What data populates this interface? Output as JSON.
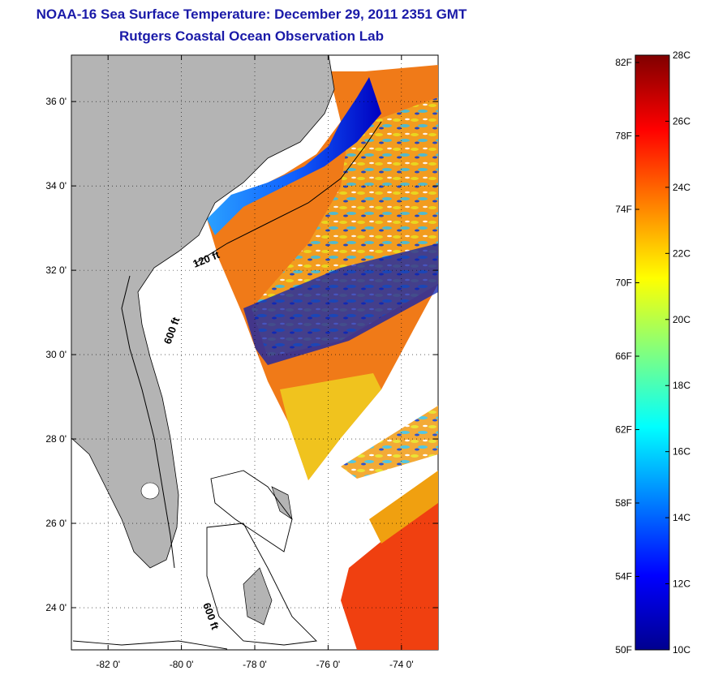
{
  "header": {
    "title": "NOAA-16 Sea Surface Temperature:  December 29, 2011 2351 GMT",
    "subtitle": "Rutgers Coastal Ocean Observation Lab"
  },
  "map": {
    "lat_ticks": [
      "24 0'",
      "26 0'",
      "28 0'",
      "30 0'",
      "32 0'",
      "34 0'",
      "36 0'"
    ],
    "lat_values": [
      24,
      26,
      28,
      30,
      32,
      34,
      36
    ],
    "lon_ticks": [
      "-82 0'",
      "-80 0'",
      "-78 0'",
      "-76 0'",
      "-74 0'"
    ],
    "lon_values": [
      -82,
      -80,
      -78,
      -76,
      -74
    ],
    "lon_range": [
      -83,
      -73
    ],
    "lat_range": [
      23,
      37.1
    ],
    "grid": "dotted",
    "land_color": "#b4b4b4",
    "contour_labels": [
      "120 ft",
      "600 ft",
      "600 ft"
    ]
  },
  "colorbar": {
    "fahrenheit_labels": [
      "82F",
      "78F",
      "74F",
      "70F",
      "66F",
      "62F",
      "58F",
      "54F",
      "50F"
    ],
    "celsius_labels": [
      "28C",
      "26C",
      "24C",
      "22C",
      "20C",
      "18C",
      "16C",
      "14C",
      "12C",
      "10C"
    ],
    "celsius_range": [
      10,
      28
    ],
    "colormap": "jet"
  }
}
